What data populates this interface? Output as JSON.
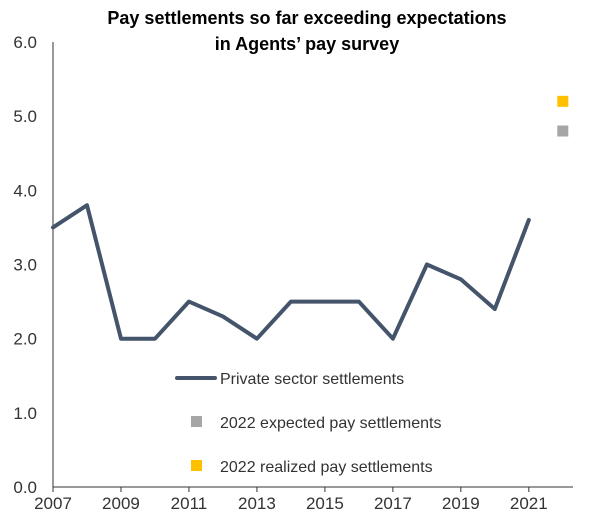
{
  "chart_data": {
    "type": "line",
    "title_lines": [
      "Pay settlements so far exceeding expectations",
      "in Agents’ pay survey"
    ],
    "xlabel": "",
    "ylabel": "",
    "xlim": [
      2007,
      2022.3
    ],
    "ylim": [
      0,
      6
    ],
    "x_ticks": [
      2007,
      2009,
      2011,
      2013,
      2015,
      2017,
      2019,
      2021
    ],
    "x_tick_labels": [
      "2007",
      "2009",
      "2011",
      "2013",
      "2015",
      "2017",
      "2019",
      "2021"
    ],
    "y_ticks": [
      0,
      1,
      2,
      3,
      4,
      5,
      6
    ],
    "y_tick_labels": [
      "0.0",
      "1.0",
      "2.0",
      "3.0",
      "4.0",
      "5.0",
      "6.0"
    ],
    "grid": false,
    "legend_position": "bottom-center",
    "series": [
      {
        "name": "Private sector settlements",
        "kind": "line",
        "color": "#44546a",
        "x": [
          2007,
          2008,
          2009,
          2010,
          2011,
          2012,
          2013,
          2014,
          2015,
          2016,
          2017,
          2018,
          2019,
          2020,
          2021
        ],
        "values": [
          3.5,
          3.8,
          2.0,
          2.0,
          2.5,
          2.3,
          2.0,
          2.5,
          2.5,
          2.5,
          2.0,
          3.0,
          2.8,
          2.4,
          3.6
        ]
      },
      {
        "name": "2022 expected pay settlements",
        "kind": "marker",
        "color": "#a6a6a6",
        "x": [
          2022
        ],
        "values": [
          4.8
        ]
      },
      {
        "name": "2022 realized pay settlements",
        "kind": "marker",
        "color": "#ffc000",
        "x": [
          2022
        ],
        "values": [
          5.2
        ]
      }
    ]
  }
}
